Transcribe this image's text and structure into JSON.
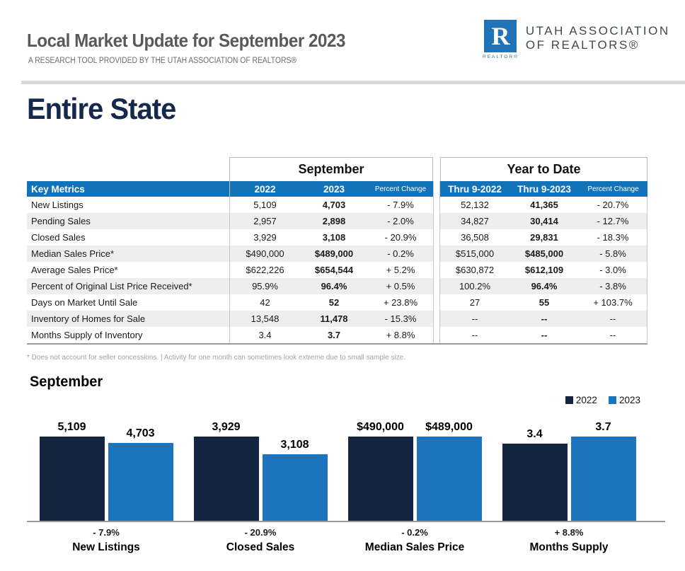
{
  "header": {
    "title": "Local Market Update for September 2023",
    "subtitle": "A RESEARCH TOOL PROVIDED BY THE UTAH ASSOCIATION OF REALTORS®",
    "logo": {
      "r_letter": "R",
      "realtor_label": "REALTOR®",
      "org_line1": "UTAH ASSOCIATION",
      "org_line2": "OF REALTORS®"
    }
  },
  "region_title": "Entire State",
  "table": {
    "group_headers": {
      "september": "September",
      "year_to_date": "Year to Date"
    },
    "columns": {
      "key_metrics": "Key Metrics",
      "sep_2022": "2022",
      "sep_2023": "2023",
      "sep_pct": "Percent Change",
      "ytd_2022": "Thru 9-2022",
      "ytd_2023": "Thru 9-2023",
      "ytd_pct": "Percent Change"
    },
    "rows": [
      {
        "metric": "New Listings",
        "sep_2022": "5,109",
        "sep_2023": "4,703",
        "sep_pct": "- 7.9%",
        "ytd_2022": "52,132",
        "ytd_2023": "41,365",
        "ytd_pct": "- 20.7%"
      },
      {
        "metric": "Pending Sales",
        "sep_2022": "2,957",
        "sep_2023": "2,898",
        "sep_pct": "- 2.0%",
        "ytd_2022": "34,827",
        "ytd_2023": "30,414",
        "ytd_pct": "- 12.7%"
      },
      {
        "metric": "Closed Sales",
        "sep_2022": "3,929",
        "sep_2023": "3,108",
        "sep_pct": "- 20.9%",
        "ytd_2022": "36,508",
        "ytd_2023": "29,831",
        "ytd_pct": "- 18.3%"
      },
      {
        "metric": "Median Sales Price*",
        "sep_2022": "$490,000",
        "sep_2023": "$489,000",
        "sep_pct": "- 0.2%",
        "ytd_2022": "$515,000",
        "ytd_2023": "$485,000",
        "ytd_pct": "- 5.8%"
      },
      {
        "metric": "Average Sales Price*",
        "sep_2022": "$622,226",
        "sep_2023": "$654,544",
        "sep_pct": "+ 5.2%",
        "ytd_2022": "$630,872",
        "ytd_2023": "$612,109",
        "ytd_pct": "- 3.0%"
      },
      {
        "metric": "Percent of Original List Price Received*",
        "sep_2022": "95.9%",
        "sep_2023": "96.4%",
        "sep_pct": "+ 0.5%",
        "ytd_2022": "100.2%",
        "ytd_2023": "96.4%",
        "ytd_pct": "- 3.8%"
      },
      {
        "metric": "Days on Market Until Sale",
        "sep_2022": "42",
        "sep_2023": "52",
        "sep_pct": "+ 23.8%",
        "ytd_2022": "27",
        "ytd_2023": "55",
        "ytd_pct": "+ 103.7%"
      },
      {
        "metric": "Inventory of Homes for Sale",
        "sep_2022": "13,548",
        "sep_2023": "11,478",
        "sep_pct": "- 15.3%",
        "ytd_2022": "--",
        "ytd_2023": "--",
        "ytd_pct": "--"
      },
      {
        "metric": "Months Supply of Inventory",
        "sep_2022": "3.4",
        "sep_2023": "3.7",
        "sep_pct": "+ 8.8%",
        "ytd_2022": "--",
        "ytd_2023": "--",
        "ytd_pct": "--"
      }
    ],
    "footnote": "* Does not account for seller concessions.  |  Activity for one month can sometimes look extreme due to small sample size."
  },
  "chart_data": {
    "type": "bar",
    "title": "September",
    "categories": [
      "New Listings",
      "Closed Sales",
      "Median Sales Price",
      "Months Supply"
    ],
    "series": [
      {
        "name": "2022",
        "color": "#14263f",
        "values": [
          5109,
          3929,
          490000,
          3.4
        ],
        "labels": [
          "5,109",
          "3,929",
          "$490,000",
          "3.4"
        ]
      },
      {
        "name": "2023",
        "color": "#1b75be",
        "values": [
          4703,
          3108,
          489000,
          3.7
        ],
        "labels": [
          "4,703",
          "3,108",
          "$489,000",
          "3.7"
        ]
      }
    ],
    "pct_change": [
      "- 7.9%",
      "- 20.9%",
      "- 0.2%",
      "+ 8.8%"
    ],
    "legend_position": "top-right",
    "normalization": "per-group max bar = full height",
    "grid": false
  },
  "colors": {
    "accent_blue": "#1273b9",
    "bar_2022": "#14263f",
    "bar_2023": "#1b75be",
    "navy_heading": "#14294b"
  }
}
